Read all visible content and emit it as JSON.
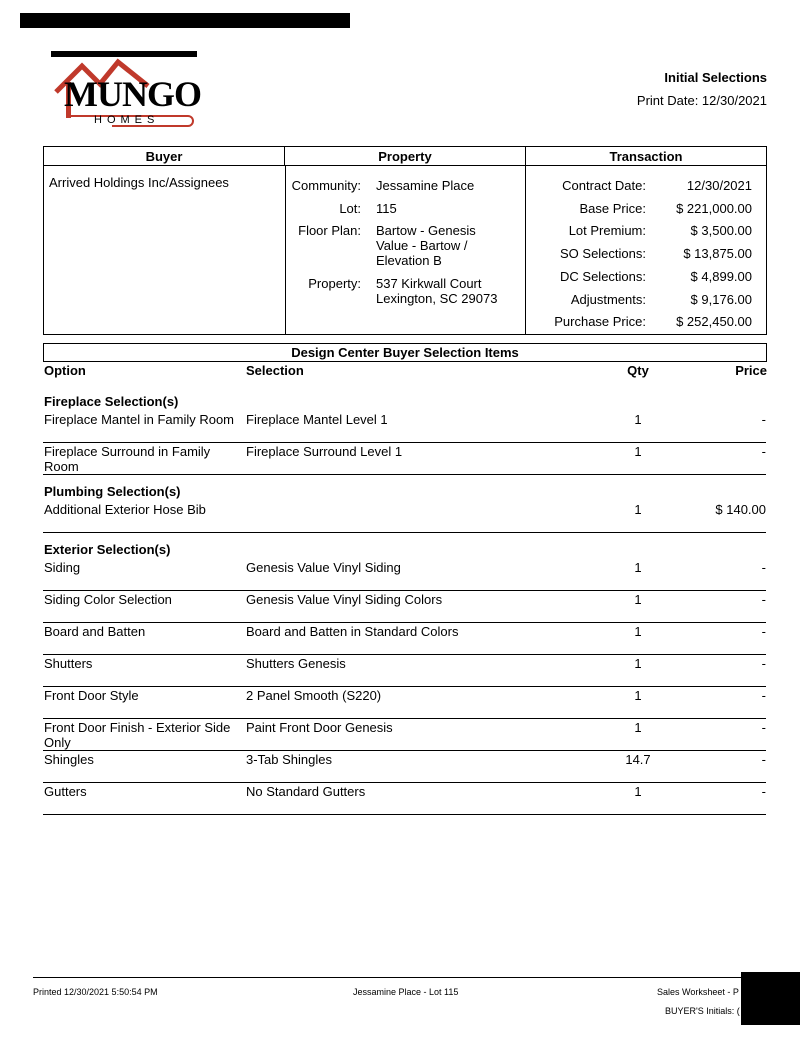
{
  "header": {
    "title": "Initial Selections",
    "print_date": "Print Date: 12/30/2021",
    "logo_text": "MUNGO",
    "logo_sub": "HOMES"
  },
  "summary": {
    "headers": [
      "Buyer",
      "Property",
      "Transaction"
    ],
    "buyer": "Arrived Holdings Inc/Assignees",
    "property": [
      {
        "label": "Community:",
        "value": "Jessamine Place"
      },
      {
        "label": "Lot:",
        "value": "115"
      },
      {
        "label": "Floor Plan:",
        "value": "Bartow - Genesis Value - Bartow / Elevation B"
      },
      {
        "label": "Property:",
        "value": "537 Kirkwall Court Lexington, SC 29073"
      }
    ],
    "transaction": [
      {
        "label": "Contract Date:",
        "value": "12/30/2021"
      },
      {
        "label": "Base Price:",
        "value": "$ 221,000.00"
      },
      {
        "label": "Lot Premium:",
        "value": "$ 3,500.00"
      },
      {
        "label": "SO Selections:",
        "value": "$ 13,875.00"
      },
      {
        "label": "DC Selections:",
        "value": "$ 4,899.00"
      },
      {
        "label": "Adjustments:",
        "value": "$ 9,176.00"
      },
      {
        "label": "Purchase Price:",
        "value": "$ 252,450.00"
      }
    ]
  },
  "design_center": {
    "title": "Design Center Buyer Selection Items",
    "columns": [
      "Option",
      "Selection",
      "Qty",
      "Price"
    ],
    "sections": [
      {
        "name": "Fireplace Selection(s)",
        "items": [
          {
            "option": "Fireplace Mantel in Family Room",
            "selection": "Fireplace Mantel Level 1",
            "qty": "1",
            "price": "-"
          },
          {
            "option": "Fireplace Surround in Family Room",
            "selection": "Fireplace Surround Level 1",
            "qty": "1",
            "price": "-"
          }
        ]
      },
      {
        "name": "Plumbing Selection(s)",
        "items": [
          {
            "option": "Additional Exterior Hose Bib",
            "selection": "",
            "qty": "1",
            "price": "$ 140.00"
          }
        ]
      },
      {
        "name": "Exterior Selection(s)",
        "items": [
          {
            "option": "Siding",
            "selection": "Genesis Value Vinyl Siding",
            "qty": "1",
            "price": "-"
          },
          {
            "option": "Siding Color Selection",
            "selection": "Genesis Value Vinyl Siding Colors",
            "qty": "1",
            "price": "-"
          },
          {
            "option": "Board and Batten",
            "selection": "Board and Batten in Standard Colors",
            "qty": "1",
            "price": "-"
          },
          {
            "option": "Shutters",
            "selection": "Shutters Genesis",
            "qty": "1",
            "price": "-"
          },
          {
            "option": "Front Door Style",
            "selection": "2 Panel Smooth (S220)",
            "qty": "1",
            "price": "-"
          },
          {
            "option": "Front Door Finish - Exterior Side Only",
            "selection": "Paint Front Door Genesis",
            "qty": "1",
            "price": "-"
          },
          {
            "option": "Shingles",
            "selection": "3-Tab Shingles",
            "qty": "14.7",
            "price": "-"
          },
          {
            "option": "Gutters",
            "selection": "No Standard Gutters",
            "qty": "1",
            "price": "-"
          }
        ]
      }
    ]
  },
  "footer": {
    "printed": "Printed 12/30/2021 5:50:54 PM",
    "center": "Jessamine Place - Lot 115",
    "right": "Sales Worksheet - P",
    "initials": "BUYER'S Initials: ("
  },
  "colors": {
    "logo_red": "#c0392b",
    "text": "#000000"
  }
}
